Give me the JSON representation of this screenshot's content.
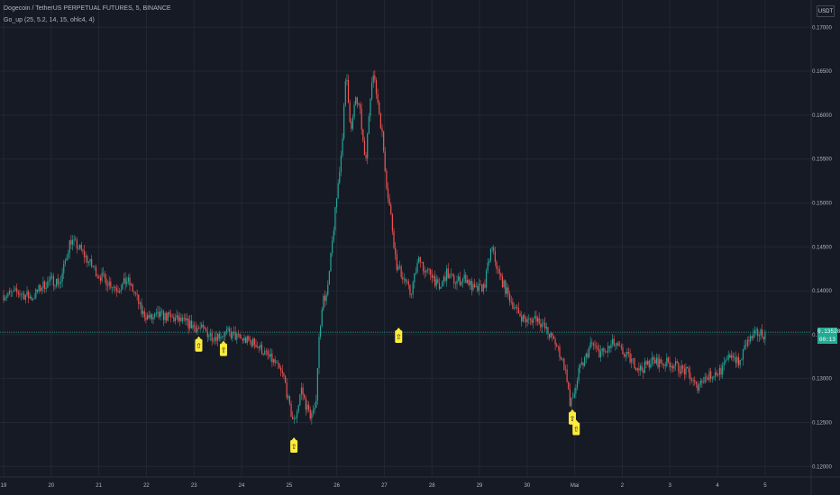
{
  "header": {
    "title": "Dogecoin / TetherUS PERPETUAL FUTURES, 5, BINANCE",
    "indicator": "Go_up (25, 5.2, 14, 15, ohlc4, 4)",
    "currency": "USDT"
  },
  "colors": {
    "background": "#161a25",
    "grid": "#232733",
    "up": "#26a69a",
    "down": "#ef5350",
    "axis_text": "#b2b5be",
    "marker": "#ffeb3b",
    "last_price": "#22ab94"
  },
  "last_price": {
    "price": "0.13528",
    "countdown": "00:13"
  },
  "chart_data": {
    "type": "candlestick",
    "y_ticks": [
      "0.17000",
      "0.16500",
      "0.16000",
      "0.15500",
      "0.15000",
      "0.14500",
      "0.14000",
      "0.13500",
      "0.13000",
      "0.12500",
      "0.12000"
    ],
    "ylim": [
      0.1188,
      0.1731
    ],
    "x_ticks": [
      "19",
      "20",
      "21",
      "22",
      "23",
      "24",
      "25",
      "26",
      "27",
      "28",
      "29",
      "30",
      "Mai",
      "2",
      "3",
      "4",
      "5"
    ],
    "x_range": [
      0,
      16.4
    ],
    "price_path": [
      [
        0.0,
        0.1395
      ],
      [
        0.3,
        0.1398
      ],
      [
        0.6,
        0.1392
      ],
      [
        0.8,
        0.1405
      ],
      [
        1.0,
        0.1412
      ],
      [
        1.2,
        0.141
      ],
      [
        1.3,
        0.1435
      ],
      [
        1.4,
        0.1458
      ],
      [
        1.6,
        0.1448
      ],
      [
        1.8,
        0.1432
      ],
      [
        2.0,
        0.1418
      ],
      [
        2.2,
        0.141
      ],
      [
        2.4,
        0.1402
      ],
      [
        2.6,
        0.1412
      ],
      [
        2.8,
        0.1392
      ],
      [
        2.9,
        0.1375
      ],
      [
        3.1,
        0.1368
      ],
      [
        3.3,
        0.1372
      ],
      [
        3.6,
        0.1368
      ],
      [
        3.9,
        0.1362
      ],
      [
        4.2,
        0.1355
      ],
      [
        4.4,
        0.1348
      ],
      [
        4.7,
        0.1352
      ],
      [
        5.0,
        0.1345
      ],
      [
        5.3,
        0.134
      ],
      [
        5.5,
        0.1328
      ],
      [
        5.7,
        0.1318
      ],
      [
        5.9,
        0.13
      ],
      [
        6.0,
        0.1268
      ],
      [
        6.1,
        0.125
      ],
      [
        6.2,
        0.1272
      ],
      [
        6.25,
        0.129
      ],
      [
        6.35,
        0.127
      ],
      [
        6.45,
        0.1258
      ],
      [
        6.55,
        0.1262
      ],
      [
        6.62,
        0.134
      ],
      [
        6.7,
        0.139
      ],
      [
        6.8,
        0.1395
      ],
      [
        6.95,
        0.148
      ],
      [
        7.1,
        0.156
      ],
      [
        7.2,
        0.165
      ],
      [
        7.3,
        0.158
      ],
      [
        7.4,
        0.162
      ],
      [
        7.5,
        0.16
      ],
      [
        7.6,
        0.154
      ],
      [
        7.7,
        0.162
      ],
      [
        7.75,
        0.165
      ],
      [
        7.85,
        0.162
      ],
      [
        7.95,
        0.158
      ],
      [
        8.05,
        0.152
      ],
      [
        8.15,
        0.148
      ],
      [
        8.25,
        0.143
      ],
      [
        8.35,
        0.142
      ],
      [
        8.45,
        0.141
      ],
      [
        8.55,
        0.1395
      ],
      [
        8.65,
        0.142
      ],
      [
        8.75,
        0.144
      ],
      [
        8.85,
        0.142
      ],
      [
        9.0,
        0.142
      ],
      [
        9.15,
        0.14
      ],
      [
        9.3,
        0.142
      ],
      [
        9.5,
        0.141
      ],
      [
        9.7,
        0.1415
      ],
      [
        9.9,
        0.14
      ],
      [
        10.1,
        0.1405
      ],
      [
        10.25,
        0.145
      ],
      [
        10.4,
        0.142
      ],
      [
        10.6,
        0.1395
      ],
      [
        10.8,
        0.1375
      ],
      [
        11.0,
        0.1365
      ],
      [
        11.2,
        0.137
      ],
      [
        11.4,
        0.1355
      ],
      [
        11.6,
        0.134
      ],
      [
        11.75,
        0.132
      ],
      [
        11.85,
        0.1298
      ],
      [
        11.9,
        0.1268
      ],
      [
        12.0,
        0.1285
      ],
      [
        12.1,
        0.131
      ],
      [
        12.2,
        0.132
      ],
      [
        12.35,
        0.134
      ],
      [
        12.5,
        0.133
      ],
      [
        12.65,
        0.133
      ],
      [
        12.8,
        0.134
      ],
      [
        13.0,
        0.133
      ],
      [
        13.2,
        0.132
      ],
      [
        13.4,
        0.131
      ],
      [
        13.6,
        0.132
      ],
      [
        13.8,
        0.1318
      ],
      [
        14.0,
        0.1318
      ],
      [
        14.2,
        0.1312
      ],
      [
        14.4,
        0.1305
      ],
      [
        14.55,
        0.129
      ],
      [
        14.7,
        0.13
      ],
      [
        14.9,
        0.1305
      ],
      [
        15.1,
        0.131
      ],
      [
        15.3,
        0.133
      ],
      [
        15.45,
        0.1315
      ],
      [
        15.6,
        0.134
      ],
      [
        15.8,
        0.135
      ],
      [
        15.9,
        0.1352
      ],
      [
        16.0,
        0.135
      ]
    ],
    "markers": [
      {
        "x": 4.1,
        "price": 0.1345,
        "label": "⇧"
      },
      {
        "x": 4.62,
        "price": 0.134,
        "label": "⇧"
      },
      {
        "x": 6.1,
        "price": 0.123,
        "label": "⇧"
      },
      {
        "x": 8.3,
        "price": 0.1355,
        "label": "⇧"
      },
      {
        "x": 11.95,
        "price": 0.1262,
        "label": "⇧"
      },
      {
        "x": 12.03,
        "price": 0.125,
        "label": "⇧"
      }
    ]
  }
}
